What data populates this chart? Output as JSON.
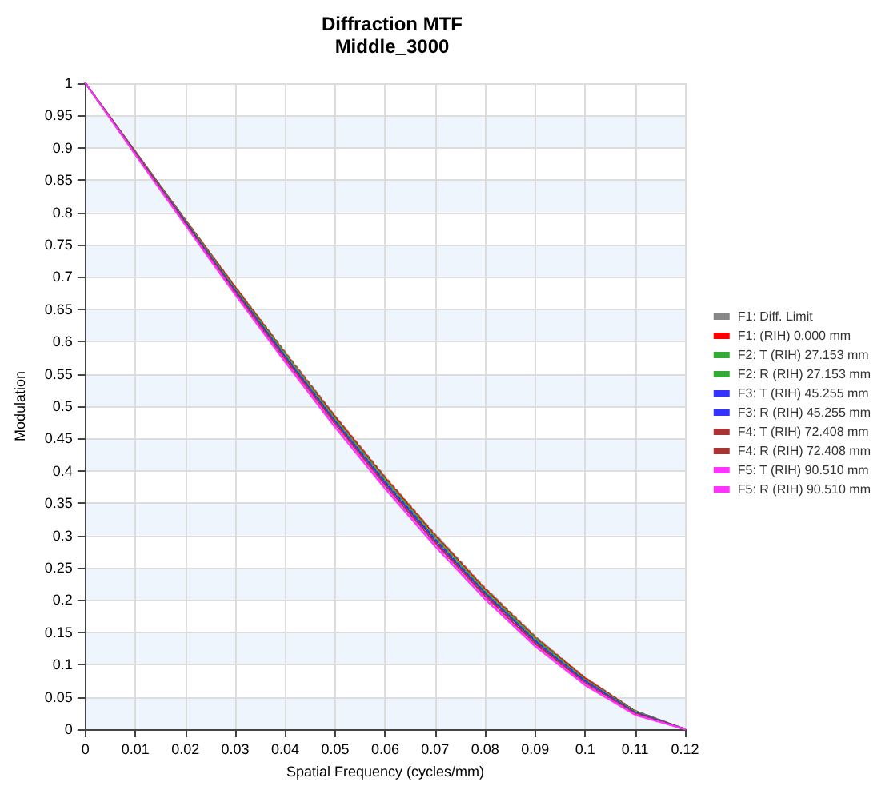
{
  "chart_data": {
    "type": "line",
    "title": "Diffraction MTF",
    "subtitle": "Middle_3000",
    "xlabel": "Spatial Frequency (cycles/mm)",
    "ylabel": "Modulation",
    "x": [
      0,
      0.01,
      0.02,
      0.03,
      0.04,
      0.05,
      0.06,
      0.07,
      0.08,
      0.09,
      0.1,
      0.11,
      0.12
    ],
    "series": [
      {
        "name": "F1: Diff. Limit",
        "color": "#888888",
        "line_style": "dotted",
        "values": [
          1,
          0.894,
          0.789,
          0.685,
          0.584,
          0.485,
          0.391,
          0.302,
          0.219,
          0.144,
          0.08,
          0.029,
          0
        ]
      },
      {
        "name": "F1: (RIH) 0.000 mm",
        "color": "#ff0000",
        "line_style": "solid",
        "values": [
          1,
          0.894,
          0.788,
          0.684,
          0.582,
          0.483,
          0.389,
          0.3,
          0.217,
          0.142,
          0.079,
          0.028,
          0
        ]
      },
      {
        "name": "F2: T (RIH) 27.153 mm",
        "color": "#33aa33",
        "line_style": "solid",
        "values": [
          1,
          0.893,
          0.786,
          0.681,
          0.579,
          0.479,
          0.385,
          0.296,
          0.213,
          0.139,
          0.076,
          0.027,
          0
        ]
      },
      {
        "name": "F2: R (RIH) 27.153 mm",
        "color": "#33aa33",
        "line_style": "dotted",
        "values": [
          1,
          0.893,
          0.787,
          0.682,
          0.581,
          0.481,
          0.387,
          0.298,
          0.215,
          0.141,
          0.077,
          0.028,
          0
        ]
      },
      {
        "name": "F3: T (RIH) 45.255 mm",
        "color": "#3333ff",
        "line_style": "solid",
        "values": [
          1,
          0.892,
          0.784,
          0.678,
          0.576,
          0.476,
          0.381,
          0.292,
          0.21,
          0.136,
          0.074,
          0.026,
          0
        ]
      },
      {
        "name": "F3: R (RIH) 45.255 mm",
        "color": "#3333ff",
        "line_style": "dotted",
        "values": [
          1,
          0.892,
          0.785,
          0.679,
          0.577,
          0.477,
          0.383,
          0.294,
          0.211,
          0.137,
          0.075,
          0.026,
          0
        ]
      },
      {
        "name": "F4: T (RIH) 72.408 mm",
        "color": "#aa3333",
        "line_style": "solid",
        "values": [
          1,
          0.891,
          0.782,
          0.675,
          0.572,
          0.472,
          0.377,
          0.288,
          0.206,
          0.132,
          0.071,
          0.024,
          0
        ]
      },
      {
        "name": "F4: R (RIH) 72.408 mm",
        "color": "#aa3333",
        "line_style": "dotted",
        "values": [
          1,
          0.891,
          0.783,
          0.677,
          0.574,
          0.474,
          0.379,
          0.29,
          0.208,
          0.134,
          0.072,
          0.025,
          0
        ]
      },
      {
        "name": "F5: T (RIH) 90.510 mm",
        "color": "#ff33ff",
        "line_style": "solid",
        "values": [
          1,
          0.889,
          0.78,
          0.672,
          0.568,
          0.467,
          0.372,
          0.283,
          0.201,
          0.128,
          0.068,
          0.022,
          0
        ]
      },
      {
        "name": "F5: R (RIH) 90.510 mm",
        "color": "#ff33ff",
        "line_style": "dotted",
        "values": [
          1,
          0.89,
          0.781,
          0.674,
          0.57,
          0.47,
          0.375,
          0.286,
          0.204,
          0.13,
          0.07,
          0.023,
          0
        ]
      }
    ],
    "xlim": [
      0,
      0.12
    ],
    "xticks": [
      0,
      0.01,
      0.02,
      0.03,
      0.04,
      0.05,
      0.06,
      0.07,
      0.08,
      0.09,
      0.1,
      0.11,
      0.12
    ],
    "ylim": [
      0,
      1
    ],
    "yticks": [
      0,
      0.05,
      0.1,
      0.15,
      0.2,
      0.25,
      0.3,
      0.35,
      0.4,
      0.45,
      0.5,
      0.55,
      0.6,
      0.65,
      0.7,
      0.75,
      0.8,
      0.85,
      0.9,
      0.95,
      1
    ],
    "grid": true,
    "legend": "right",
    "marker": "none"
  }
}
